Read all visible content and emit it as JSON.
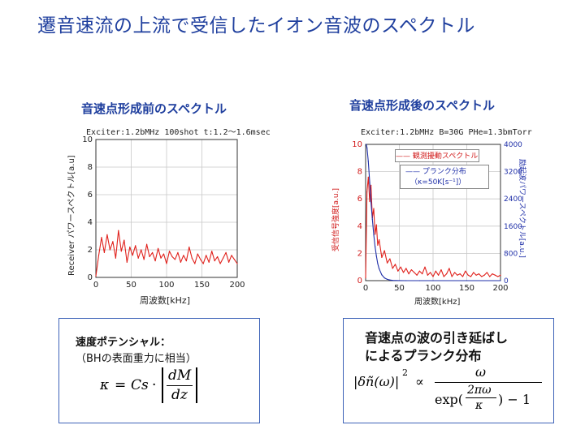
{
  "page_title": "遷音速流の上流で受信したイオン音波のスペクトル",
  "left": {
    "title": "音速点形成前のスペクトル",
    "header": "Exciter:1.2bMHz 100shot t:1.2〜1.6msec",
    "xlabel": "周波数[kHz]",
    "ylabel": "Receiver パワースペクトル[a.u]",
    "x_ticks": [
      "0",
      "50",
      "100",
      "150",
      "200"
    ],
    "y_ticks": [
      "0",
      "2",
      "4",
      "6",
      "8",
      "10"
    ]
  },
  "right": {
    "title": "音速点形成後のスペクトル",
    "header": "Exciter:1.2bMHz B=30G PHe=1.3bmTorr",
    "xlabel": "周波数[kHz]",
    "ylabel_left": "受信信号強度[a.u.]",
    "ylabel_right": "励起波パワースペクトル[a.u.]",
    "x_ticks": [
      "0",
      "50",
      "100",
      "150",
      "200"
    ],
    "y_ticks_left": [
      "0",
      "2",
      "4",
      "6",
      "8",
      "10"
    ],
    "y_ticks_right": [
      "0",
      "800",
      "1600",
      "2400",
      "3200",
      "4000"
    ],
    "legend": {
      "series1": "—— 観測擾動スペクトル",
      "series2": "—— プランク分布",
      "series2_param": "（κ=50K[s⁻¹]）"
    }
  },
  "bottom_left": {
    "line1": "速度ポテンシャル：",
    "line2": "（BHの表面重力に相当）",
    "formula": {
      "kappa": "κ",
      "eq": "=",
      "cs": "Cs",
      "dot": "·",
      "num": "dM",
      "den": "dz"
    }
  },
  "bottom_right": {
    "line1": "音速点の波の引き延ばし",
    "line2": "によるプランク分布",
    "formula": {
      "lhs": "|δñ(ω)|",
      "sq": "2",
      "prop": "∝",
      "num": "ω",
      "den_a": "exp(",
      "den_num": "2πω",
      "den_den": "κ",
      "den_b": ") − 1"
    }
  },
  "chart_data": [
    {
      "type": "line",
      "title": "音速点形成前のスペクトル",
      "xlabel": "周波数[kHz]",
      "ylabel": "Receiver パワースペクトル[a.u]",
      "xlim": [
        0,
        200
      ],
      "ylim": [
        0,
        10
      ],
      "grid": true,
      "series": [
        {
          "color": "#e0201b",
          "x": [
            0,
            4,
            8,
            12,
            16,
            20,
            24,
            28,
            32,
            36,
            40,
            44,
            48,
            52,
            56,
            60,
            64,
            68,
            72,
            76,
            80,
            84,
            88,
            92,
            96,
            100,
            104,
            108,
            112,
            116,
            120,
            124,
            128,
            132,
            136,
            140,
            144,
            148,
            152,
            156,
            160,
            164,
            168,
            172,
            176,
            180,
            184,
            188,
            192,
            196,
            200
          ],
          "y": [
            0.1,
            1.6,
            2.9,
            1.8,
            3.1,
            2.0,
            2.6,
            1.4,
            3.4,
            1.9,
            2.7,
            1.1,
            2.2,
            1.6,
            2.3,
            1.4,
            2.0,
            1.3,
            2.4,
            1.5,
            1.8,
            1.2,
            2.1,
            1.4,
            1.7,
            1.0,
            1.9,
            1.5,
            1.3,
            1.8,
            1.1,
            1.6,
            1.2,
            2.2,
            1.4,
            1.0,
            1.7,
            1.3,
            1.0,
            1.6,
            1.1,
            1.9,
            1.2,
            1.5,
            1.0,
            1.4,
            1.8,
            1.1,
            1.6,
            1.3,
            1.0
          ]
        }
      ]
    },
    {
      "type": "line",
      "title": "音速点形成後のスペクトル",
      "xlabel": "周波数[kHz]",
      "ylabel": "受信信号強度[a.u.]",
      "xlim": [
        0,
        200
      ],
      "ylim": [
        0,
        10
      ],
      "y2lim": [
        0,
        4000
      ],
      "grid": true,
      "series": [
        {
          "name": "観測擾動スペクトル",
          "color": "#e0201b",
          "x": [
            0,
            2,
            4,
            6,
            8,
            10,
            12,
            14,
            16,
            18,
            20,
            24,
            28,
            32,
            36,
            40,
            44,
            48,
            52,
            56,
            60,
            64,
            68,
            72,
            76,
            80,
            84,
            88,
            92,
            96,
            100,
            104,
            108,
            112,
            116,
            120,
            124,
            128,
            132,
            136,
            140,
            144,
            148,
            152,
            156,
            160,
            164,
            168,
            172,
            176,
            180,
            184,
            188,
            192,
            196,
            200
          ],
          "y": [
            0.2,
            6.5,
            7.6,
            5.8,
            7.0,
            4.6,
            5.3,
            3.4,
            4.1,
            2.6,
            3.0,
            1.7,
            2.2,
            1.3,
            1.6,
            0.9,
            1.2,
            0.7,
            1.0,
            0.6,
            0.9,
            0.5,
            0.8,
            0.6,
            0.4,
            0.7,
            0.5,
            1.0,
            0.4,
            0.6,
            0.3,
            0.7,
            0.4,
            0.8,
            0.3,
            0.5,
            0.9,
            0.3,
            0.6,
            0.4,
            0.5,
            0.3,
            0.7,
            0.4,
            0.3,
            0.6,
            0.4,
            0.5,
            0.3,
            0.4,
            0.6,
            0.3,
            0.5,
            0.4,
            0.3,
            0.4
          ]
        },
        {
          "name": "プランク分布",
          "color": "#1f2fa8",
          "axis": "right",
          "x": [
            1,
            2,
            4,
            6,
            8,
            10,
            12,
            14,
            16,
            18,
            20,
            24,
            28,
            32,
            36,
            40,
            50,
            60,
            80,
            100,
            150,
            200
          ],
          "y": [
            4000,
            3900,
            3500,
            2900,
            2300,
            1800,
            1350,
            1000,
            720,
            500,
            350,
            170,
            80,
            38,
            18,
            8,
            2,
            0.5,
            0,
            0,
            0,
            0
          ]
        }
      ]
    }
  ]
}
